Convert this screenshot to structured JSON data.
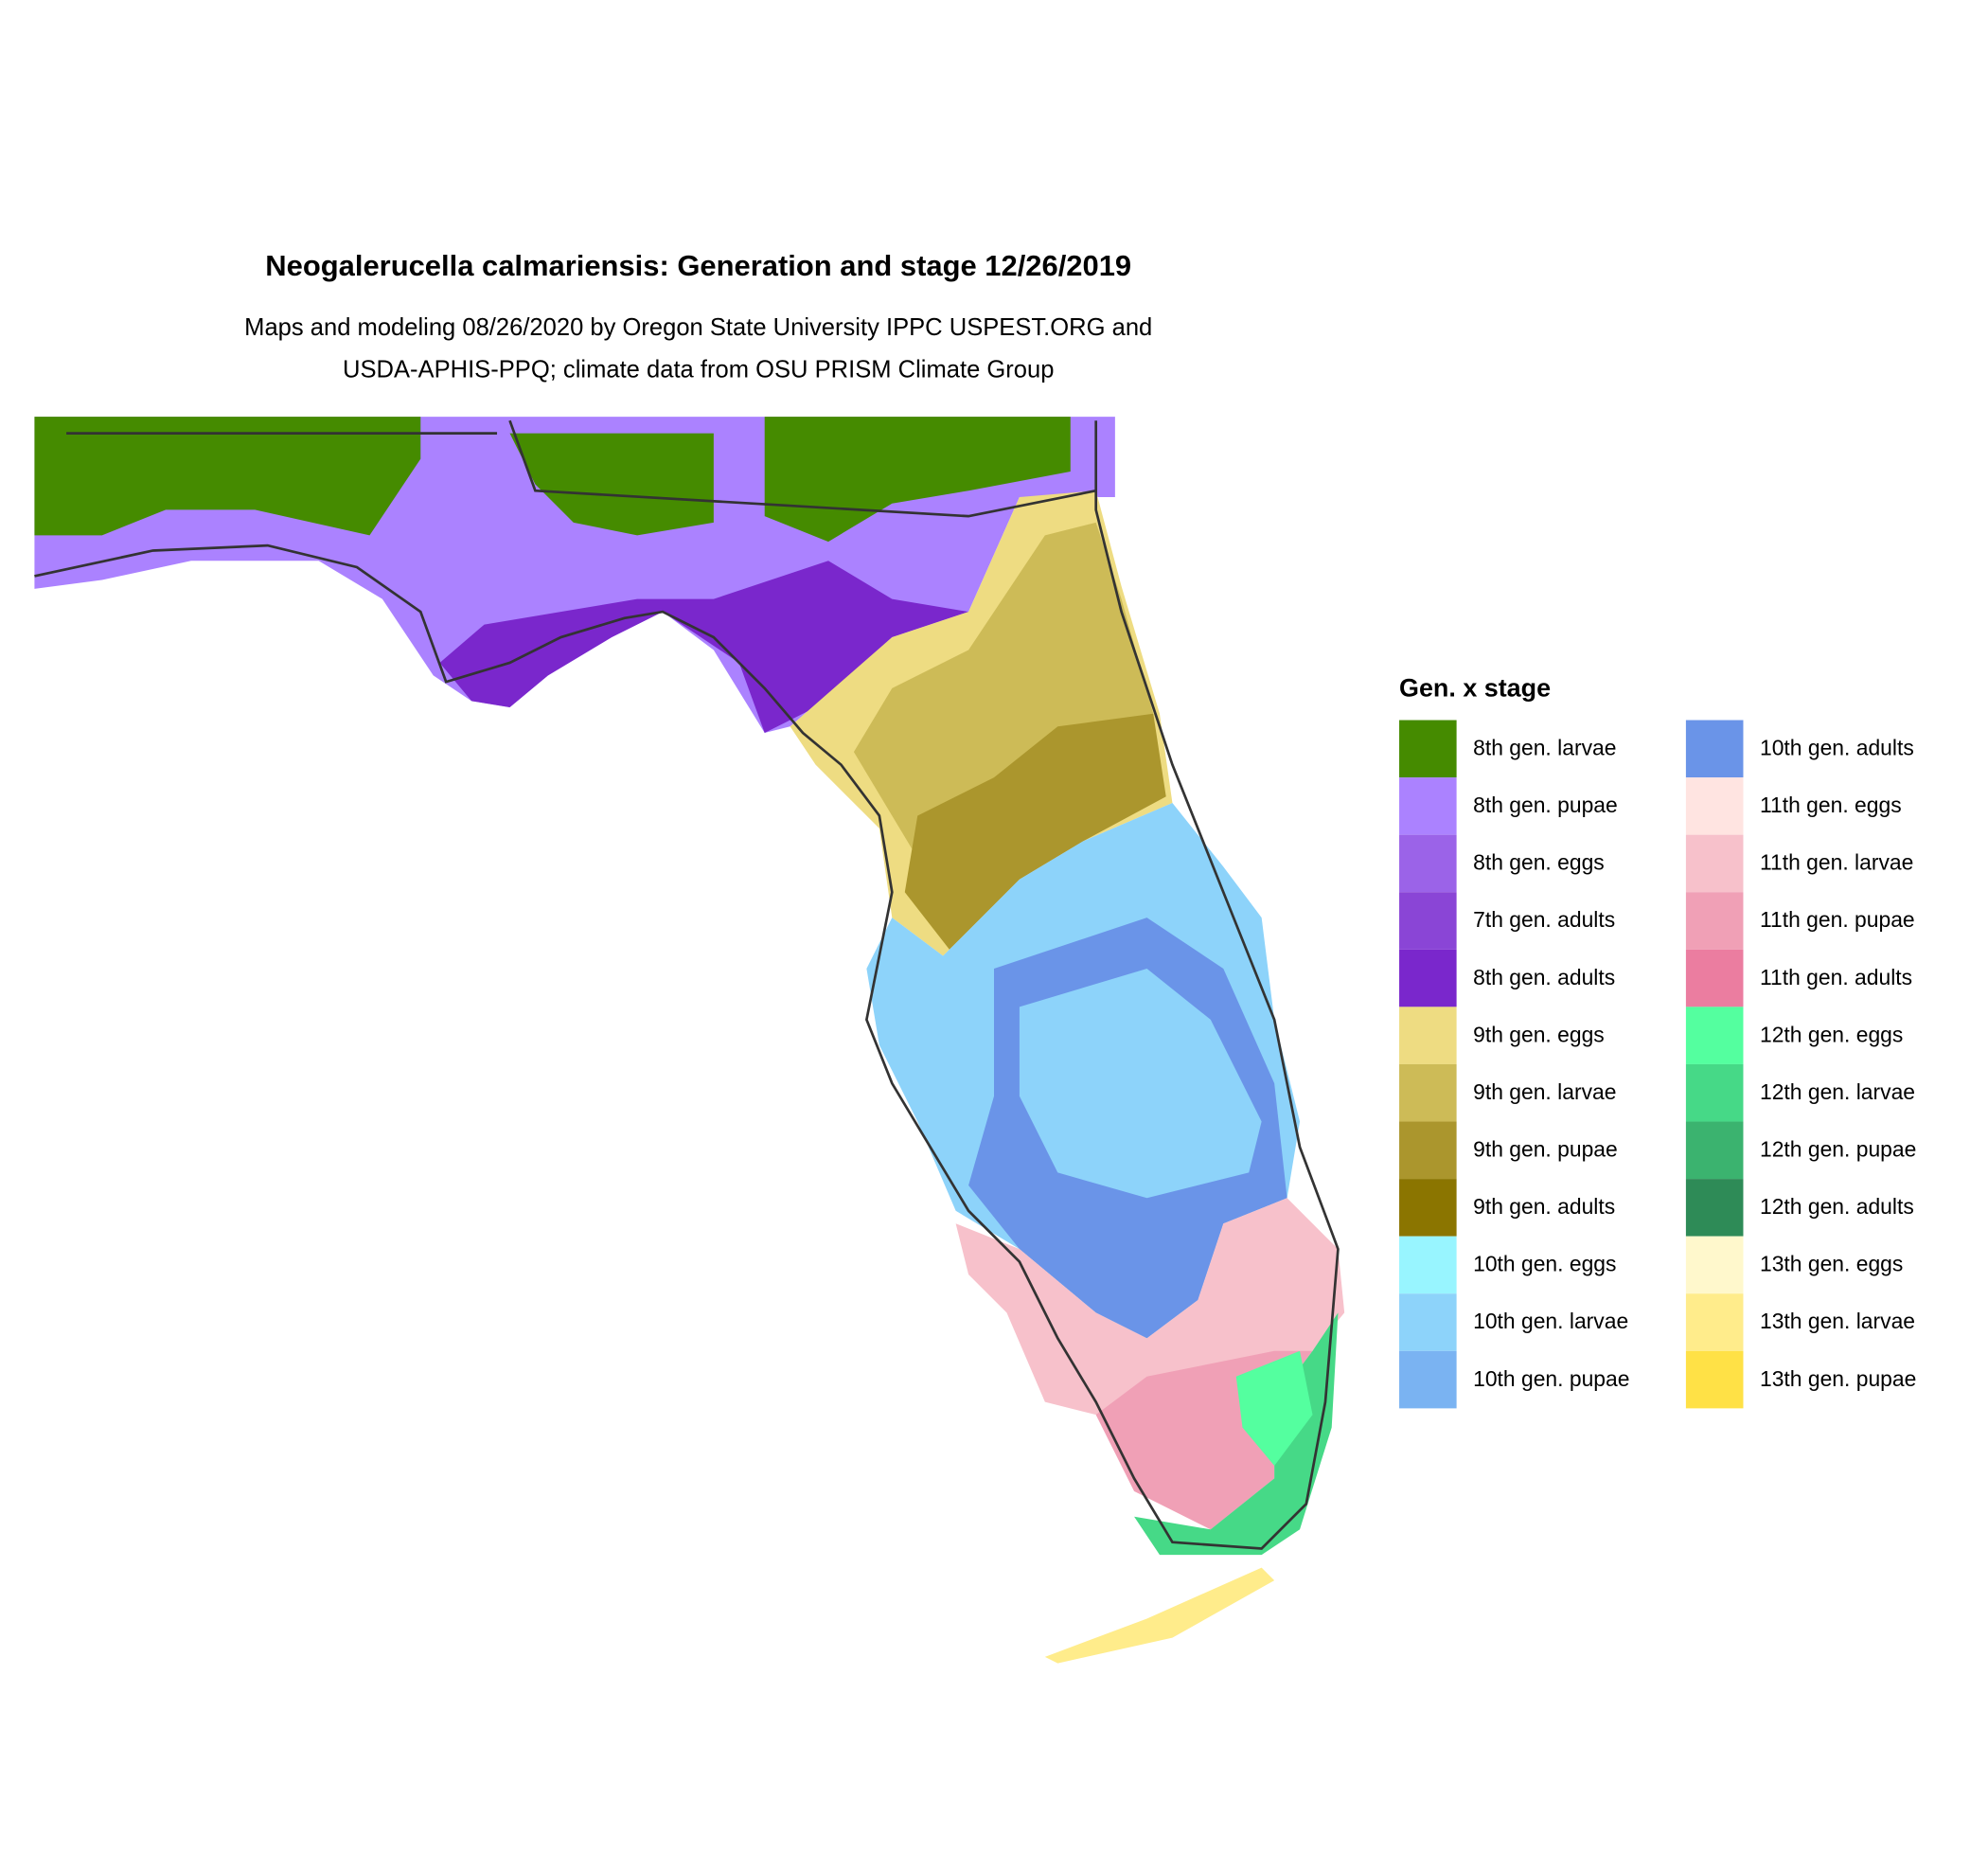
{
  "title": "Neogalerucella calmariensis: Generation and stage 12/26/2019",
  "subtitle": [
    "Maps and modeling 08/26/2020 by Oregon State University IPPC USPEST.ORG and",
    "USDA-APHIS-PPQ; climate data from OSU PRISM Climate Group"
  ],
  "legend": {
    "title": "Gen. x stage",
    "items": [
      {
        "label": "8th gen. larvae",
        "color": "#458b00"
      },
      {
        "label": "8th gen. pupae",
        "color": "#ab82ff"
      },
      {
        "label": "8th gen. eggs",
        "color": "#9b63e8"
      },
      {
        "label": "7th gen. adults",
        "color": "#8a45d6"
      },
      {
        "label": "8th gen. adults",
        "color": "#7a27cc"
      },
      {
        "label": "9th gen. eggs",
        "color": "#eedc82"
      },
      {
        "label": "9th gen. larvae",
        "color": "#cdbb57"
      },
      {
        "label": "9th gen. pupae",
        "color": "#ab962d"
      },
      {
        "label": "9th gen. adults",
        "color": "#8b7500"
      },
      {
        "label": "10th gen. eggs",
        "color": "#98f5ff"
      },
      {
        "label": "10th gen. larvae",
        "color": "#8dd3fa"
      },
      {
        "label": "10th gen. pupae",
        "color": "#7ab3f2"
      },
      {
        "label": "10th gen. adults",
        "color": "#6a94e8"
      },
      {
        "label": "11th gen. eggs",
        "color": "#ffe4e1"
      },
      {
        "label": "11th gen. larvae",
        "color": "#f7c1cb"
      },
      {
        "label": "11th gen. pupae",
        "color": "#f0a0b6"
      },
      {
        "label": "11th gen. adults",
        "color": "#eb7da0"
      },
      {
        "label": "12th gen. eggs",
        "color": "#54ff9f"
      },
      {
        "label": "12th gen. larvae",
        "color": "#46d987"
      },
      {
        "label": "12th gen. pupae",
        "color": "#3bb36f"
      },
      {
        "label": "12th gen. adults",
        "color": "#2e8b57"
      },
      {
        "label": "13th gen. eggs",
        "color": "#fff8cc"
      },
      {
        "label": "13th gen. larvae",
        "color": "#ffec8b"
      },
      {
        "label": "13th gen. pupae",
        "color": "#ffe146"
      }
    ]
  }
}
